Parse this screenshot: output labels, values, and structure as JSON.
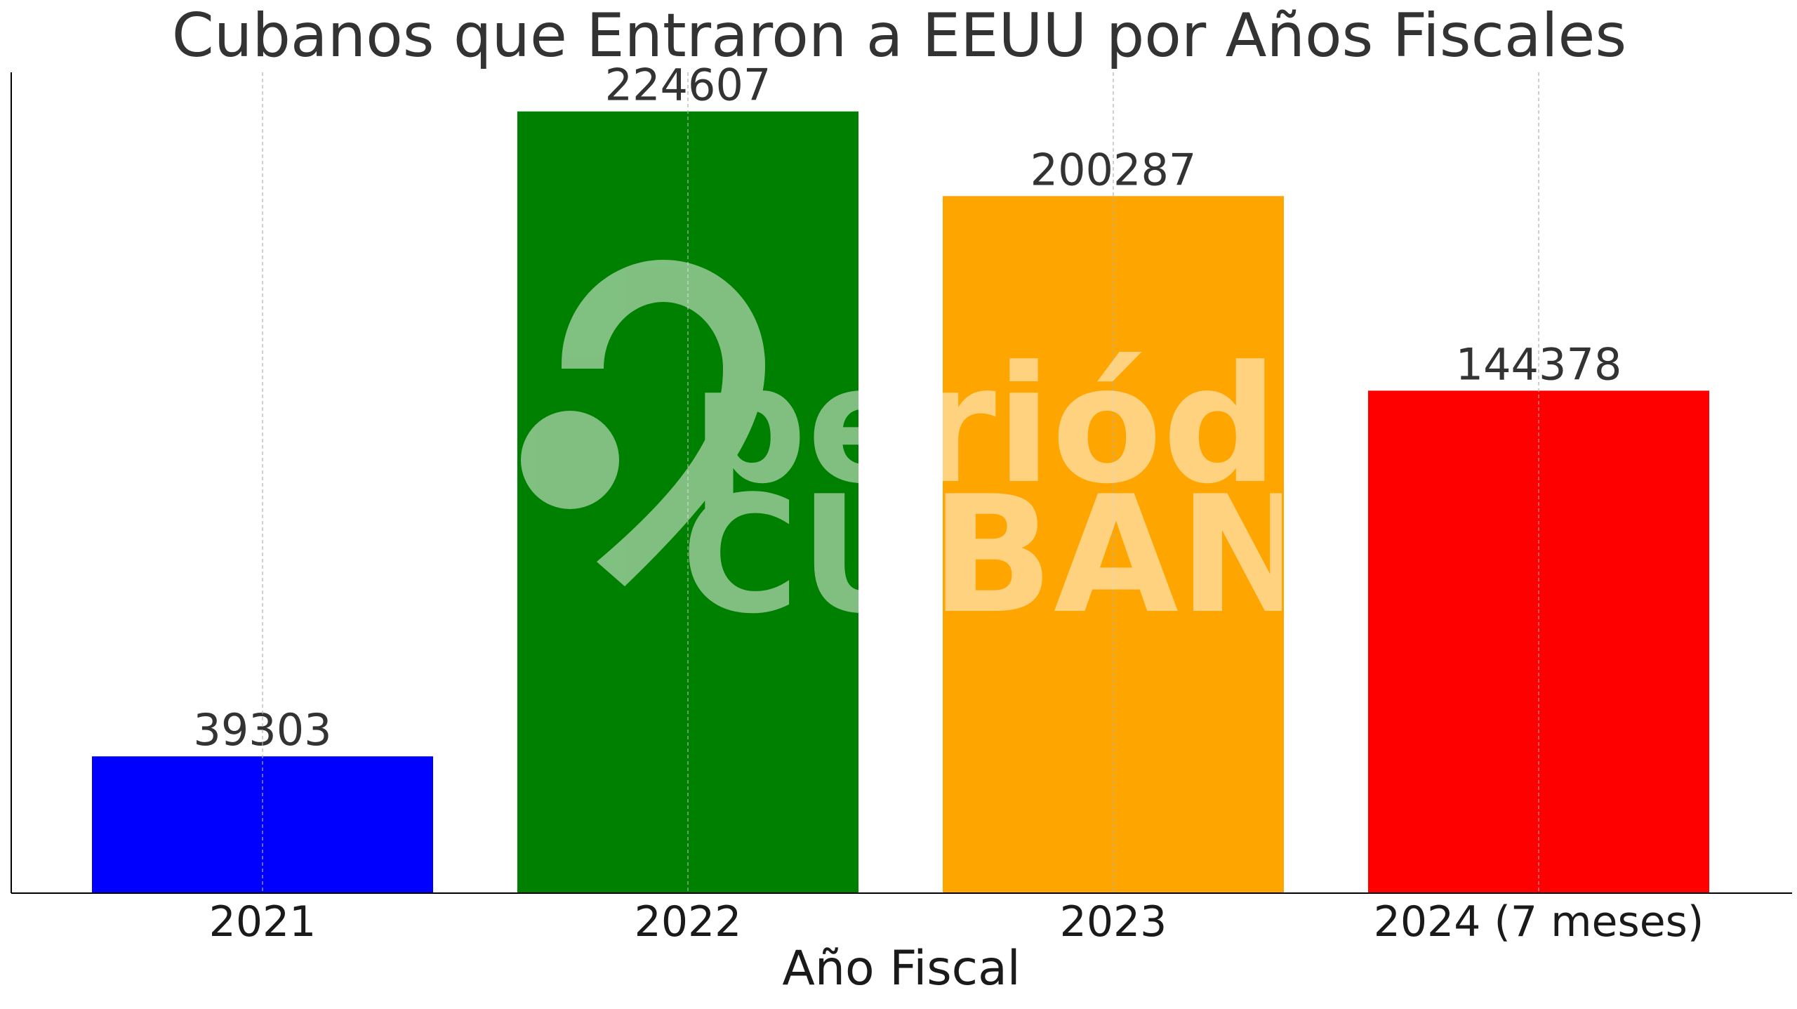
{
  "chart_data": {
    "type": "bar",
    "title": "Cubanos que Entraron a EEUU por Años Fiscales",
    "xlabel": "Año Fiscal",
    "ylabel": "",
    "categories": [
      "2021",
      "2022",
      "2023",
      "2024 (7 meses)"
    ],
    "values": [
      39303,
      224607,
      200287,
      144378
    ],
    "colors": [
      "#0000ff",
      "#008000",
      "#ffa500",
      "#ff0000"
    ],
    "ylim": [
      0,
      235846
    ],
    "grid": "vertical",
    "data_labels": true
  },
  "watermark": {
    "line1": "periódico",
    "line2": "CUBANO"
  }
}
